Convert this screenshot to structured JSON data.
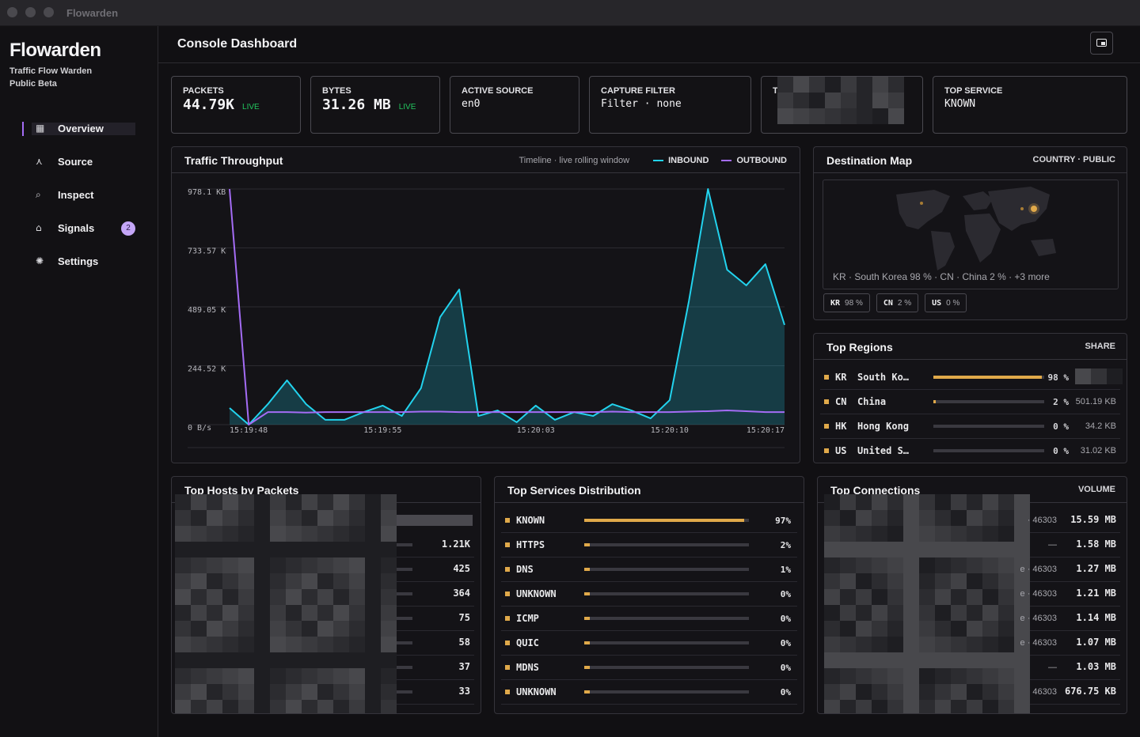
{
  "window": {
    "title": "Flowarden"
  },
  "sidebar": {
    "brand": "Flowarden",
    "tagline": "Traffic Flow Warden",
    "edition": "Public Beta",
    "nav": [
      {
        "label": "Overview",
        "active": true
      },
      {
        "label": "Source"
      },
      {
        "label": "Inspect"
      },
      {
        "label": "Signals",
        "badge": 2
      },
      {
        "label": "Settings"
      }
    ]
  },
  "header": {
    "title": "Console Dashboard"
  },
  "stats": [
    {
      "label": "PACKETS",
      "value": "44.79K",
      "status": "LIVE"
    },
    {
      "label": "BYTES",
      "value": "31.26 MB",
      "status": "LIVE"
    },
    {
      "label": "ACTIVE SOURCE",
      "value": "en0"
    },
    {
      "label": "CAPTURE FILTER",
      "value": "Filter · none"
    },
    {
      "label": "T"
    },
    {
      "label": "TOP SERVICE",
      "value": "KNOWN"
    }
  ],
  "chart_data": {
    "type": "line",
    "title": "Traffic Throughput",
    "subtitle": "Timeline · live rolling window",
    "x": [
      "15:19:48",
      "15:19:49",
      "15:19:50",
      "15:19:51",
      "15:19:52",
      "15:19:53",
      "15:19:54",
      "15:19:55",
      "15:19:56",
      "15:19:57",
      "15:19:58",
      "15:19:59",
      "15:20:00",
      "15:20:01",
      "15:20:02",
      "15:20:03",
      "15:20:04",
      "15:20:05",
      "15:20:06",
      "15:20:07",
      "15:20:08",
      "15:20:09",
      "15:20:10",
      "15:20:11",
      "15:20:12",
      "15:20:13",
      "15:20:14",
      "15:20:15",
      "15:20:16",
      "15:20:17"
    ],
    "xlim": [
      "15:19:48",
      "15:20:17"
    ],
    "xticks": [
      "15:19:48",
      "15:19:55",
      "15:20:03",
      "15:20:10",
      "15:20:17"
    ],
    "ylim": [
      0,
      978.1
    ],
    "yticks": [
      {
        "value": 978.1,
        "label": "978.1 KB/s"
      },
      {
        "value": 733.57,
        "label": "733.57 KB/s"
      },
      {
        "value": 489.05,
        "label": "489.05 KB/s"
      },
      {
        "value": 244.52,
        "label": "244.52 KB/s"
      },
      {
        "value": 0,
        "label": "0 B/s"
      }
    ],
    "grid": true,
    "series": [
      {
        "name": "INBOUND",
        "color": "#22d3ee",
        "area": true,
        "values": [
          69,
          0,
          85,
          184,
          85,
          20,
          20,
          52,
          79,
          36,
          151,
          446,
          561,
          36,
          59,
          10,
          79,
          20,
          52,
          36,
          85,
          59,
          26,
          102,
          512,
          978,
          643,
          578,
          666,
          414
        ]
      },
      {
        "name": "OUTBOUND",
        "color": "#a46cf5",
        "values": [
          978,
          0,
          52,
          52,
          50,
          52,
          52,
          52,
          52,
          52,
          54,
          54,
          52,
          52,
          52,
          52,
          52,
          52,
          52,
          52,
          54,
          52,
          52,
          52,
          54,
          56,
          59,
          56,
          52,
          52
        ]
      }
    ]
  },
  "destination_map": {
    "title": "Destination Map",
    "scope": "COUNTRY · PUBLIC",
    "caption": "KR · South Korea 98 % · CN · China 2 % · +3 more",
    "chips": [
      {
        "code": "KR",
        "share": "98 %"
      },
      {
        "code": "CN",
        "share": "2 %"
      },
      {
        "code": "US",
        "share": "0 %"
      }
    ]
  },
  "top_regions": {
    "title": "Top Regions",
    "column": "SHARE",
    "rows": [
      {
        "code": "KR",
        "name": "South Ko…",
        "share": 98,
        "share_label": "98 %"
      },
      {
        "code": "CN",
        "name": "China",
        "share": 2,
        "share_label": "2 %",
        "bytes": "501.19 KB"
      },
      {
        "code": "HK",
        "name": "Hong Kong",
        "share": 0,
        "share_label": "0 %",
        "bytes": "34.2 KB"
      },
      {
        "code": "US",
        "name": "United S…",
        "share": 0,
        "share_label": "0 %",
        "bytes": "31.02 KB"
      }
    ]
  },
  "top_hosts": {
    "title": "Top Hosts by Packets",
    "counts": [
      "1.21K",
      "425",
      "364",
      "75",
      "58",
      "37",
      "33"
    ]
  },
  "top_services": {
    "title": "Top Services Distribution",
    "rows": [
      {
        "name": "KNOWN",
        "share": 97,
        "share_label": "97%"
      },
      {
        "name": "HTTPS",
        "share": 2,
        "share_label": "2%"
      },
      {
        "name": "DNS",
        "share": 1,
        "share_label": "1%"
      },
      {
        "name": "UNKNOWN",
        "share": 0,
        "share_label": "0%"
      },
      {
        "name": "ICMP",
        "share": 0,
        "share_label": "0%"
      },
      {
        "name": "QUIC",
        "share": 0,
        "share_label": "0%"
      },
      {
        "name": "MDNS",
        "share": 0,
        "share_label": "0%"
      },
      {
        "name": "UNKNOWN",
        "share": 0,
        "share_label": "0%"
      }
    ]
  },
  "top_connections": {
    "title": "Top Connections",
    "column": "VOLUME",
    "rows": [
      {
        "peer": "· 46303",
        "volume": "15.59 MB"
      },
      {
        "peer": "—",
        "volume": "1.58 MB"
      },
      {
        "peer": "e · 46303",
        "volume": "1.27 MB"
      },
      {
        "peer": "e · 46303",
        "volume": "1.21 MB"
      },
      {
        "peer": "e · 46303",
        "volume": "1.14 MB"
      },
      {
        "peer": "e · 46303",
        "volume": "1.07 MB"
      },
      {
        "peer": "—",
        "volume": "1.03 MB"
      },
      {
        "peer": "46303",
        "volume": "676.75 KB"
      }
    ]
  }
}
